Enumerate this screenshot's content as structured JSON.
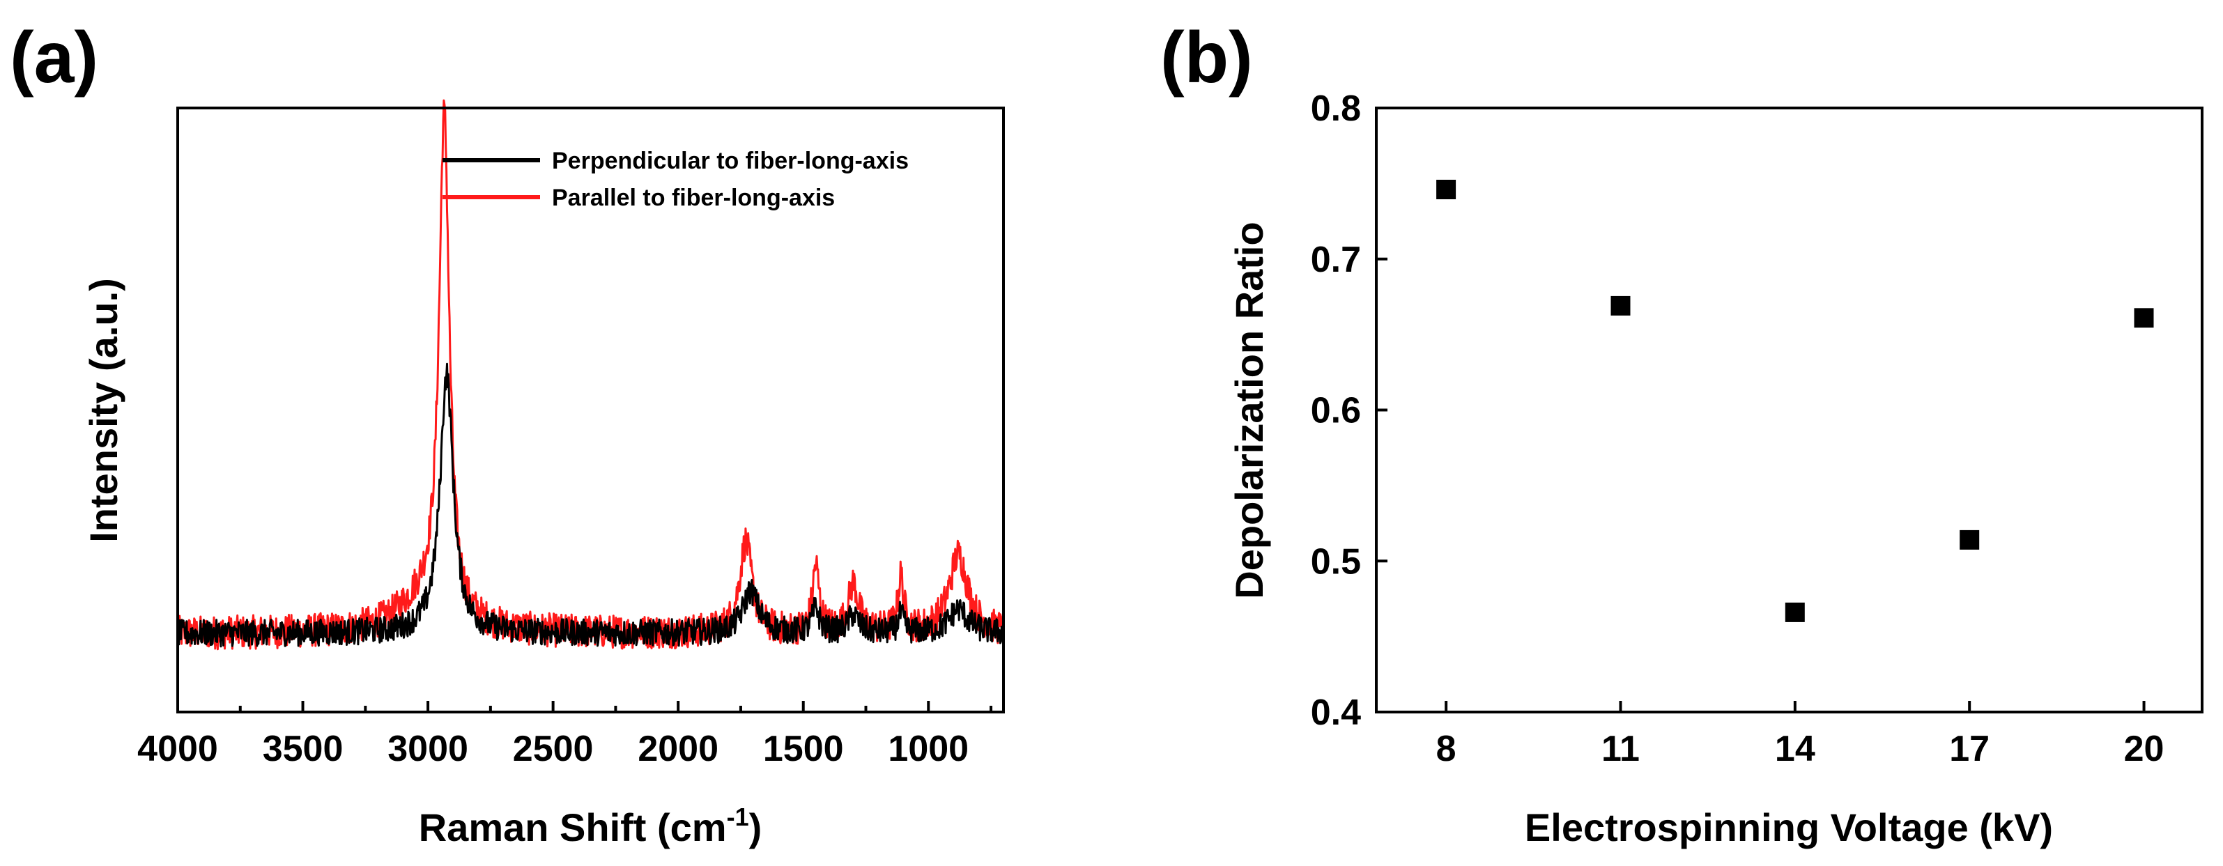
{
  "panels": {
    "a": {
      "label": "(a)"
    },
    "b": {
      "label": "(b)"
    }
  },
  "chart_data": [
    {
      "type": "line",
      "panel": "(a)",
      "title": "",
      "xlabel_main": "Raman Shift (cm",
      "xlabel_sup": "-1",
      "xlabel_end": ")",
      "ylabel": "Intensity (a.u.)",
      "xlim": [
        4000,
        700
      ],
      "x_reversed": true,
      "ylim": [
        0,
        1
      ],
      "y_ticks_shown": false,
      "xticks": [
        4000,
        3500,
        3000,
        2500,
        2000,
        1500,
        1000
      ],
      "xtick_labels": [
        "4000",
        "3500",
        "3000",
        "2500",
        "2000",
        "1500",
        "1000"
      ],
      "legend_position": "top-right",
      "series": [
        {
          "name": "Perpendicular to fiber-long-axis",
          "color": "#000000",
          "baseline": 0.13,
          "noise": 0.022,
          "peaks": [
            {
              "x": 2925,
              "height": 0.43,
              "width": 32
            },
            {
              "x": 1710,
              "height": 0.07,
              "width": 38
            },
            {
              "x": 1450,
              "height": 0.04,
              "width": 18
            },
            {
              "x": 1300,
              "height": 0.03,
              "width": 25
            },
            {
              "x": 1110,
              "height": 0.03,
              "width": 14
            },
            {
              "x": 880,
              "height": 0.04,
              "width": 45
            }
          ]
        },
        {
          "name": "Parallel to fiber-long-axis",
          "color": "#ff1a1a",
          "baseline": 0.13,
          "noise": 0.028,
          "peaks": [
            {
              "x": 2935,
              "height": 0.83,
              "width": 25
            },
            {
              "x": 3020,
              "height": 0.05,
              "width": 120
            },
            {
              "x": 1730,
              "height": 0.15,
              "width": 30
            },
            {
              "x": 1450,
              "height": 0.11,
              "width": 16
            },
            {
              "x": 1300,
              "height": 0.08,
              "width": 25
            },
            {
              "x": 1110,
              "height": 0.09,
              "width": 14
            },
            {
              "x": 880,
              "height": 0.13,
              "width": 45
            }
          ]
        }
      ]
    },
    {
      "type": "scatter",
      "panel": "(b)",
      "title": "",
      "xlabel": "Electrospinning Voltage (kV)",
      "ylabel": "Depolarization Ratio",
      "xlim": [
        6.8,
        21
      ],
      "ylim": [
        0.4,
        0.8
      ],
      "xticks": [
        8,
        11,
        14,
        17,
        20
      ],
      "xtick_labels": [
        "8",
        "11",
        "14",
        "17",
        "20"
      ],
      "yticks": [
        0.4,
        0.5,
        0.6,
        0.7,
        0.8
      ],
      "ytick_labels": [
        "0.4",
        "0.5",
        "0.6",
        "0.7",
        "0.8"
      ],
      "marker": "square",
      "color": "#000000",
      "x": [
        8,
        11,
        14,
        17,
        20
      ],
      "y": [
        0.746,
        0.669,
        0.466,
        0.514,
        0.661
      ]
    }
  ]
}
